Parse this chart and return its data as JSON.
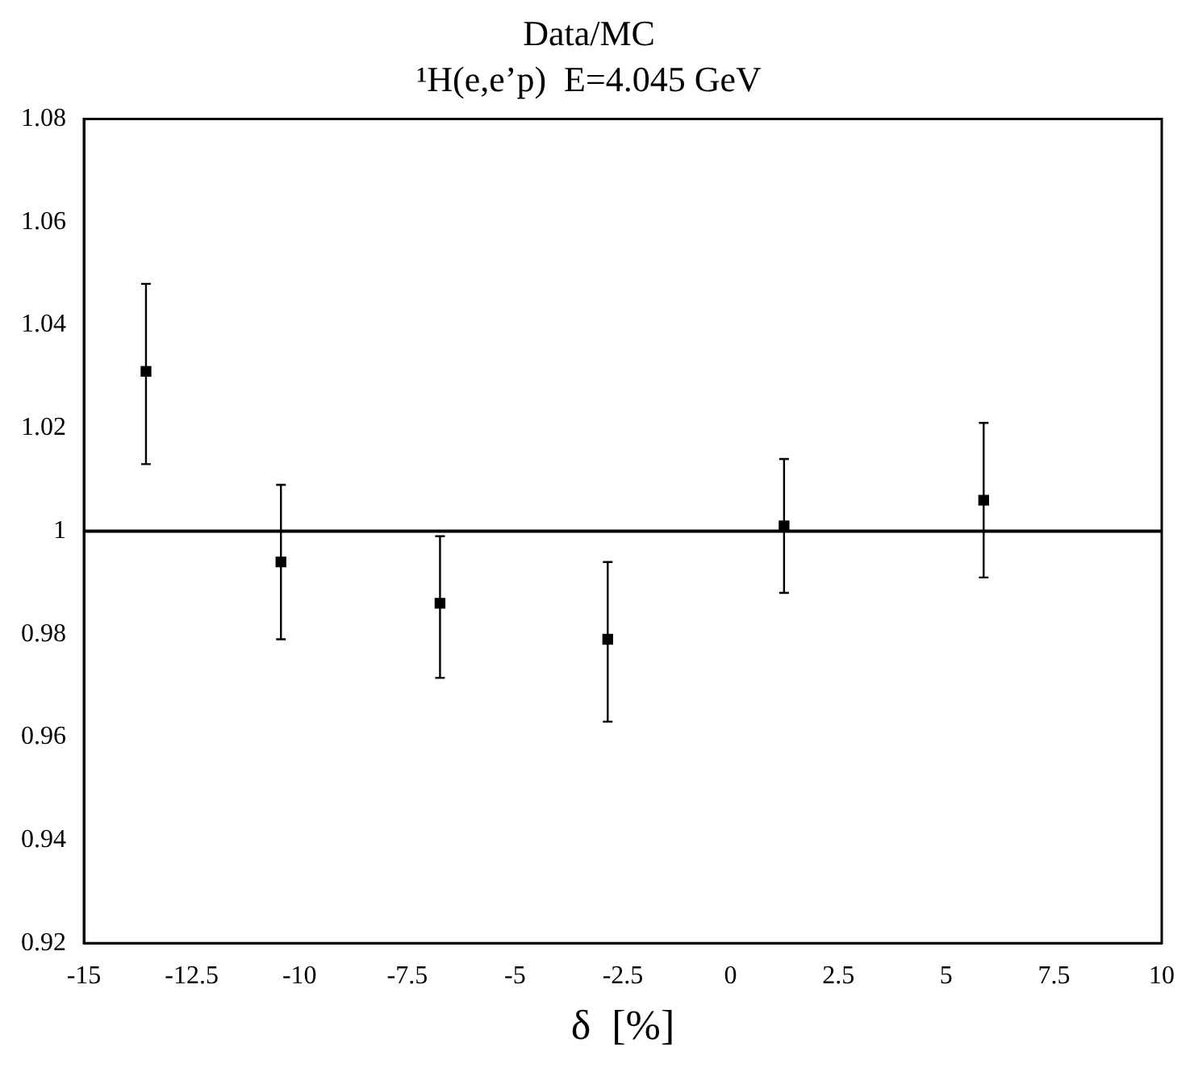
{
  "chart_data": {
    "type": "scatter",
    "title": "Data/MC",
    "subtitle": "¹H(e,e’p)  E=4.045 GeV",
    "xlabel": "δ  [%]",
    "x": [
      -13.56,
      -10.43,
      -6.74,
      -2.85,
      1.24,
      5.87
    ],
    "values": [
      1.031,
      0.994,
      0.986,
      0.979,
      1.001,
      1.006
    ],
    "errors": [
      [
        1.013,
        1.048
      ],
      [
        0.979,
        1.009
      ],
      [
        0.9715,
        0.999
      ],
      [
        0.963,
        0.994
      ],
      [
        0.988,
        1.014
      ],
      [
        0.991,
        1.021
      ]
    ],
    "color": "#000000",
    "marker": "square",
    "grid": false,
    "legend": false,
    "xlim": [
      -15,
      10
    ],
    "xticks": [
      -15,
      -12.5,
      -10,
      -7.5,
      -5,
      -2.5,
      0,
      2.5,
      5,
      7.5,
      10
    ],
    "ylim": [
      0.92,
      1.08
    ],
    "yticks": [
      0.92,
      0.94,
      0.96,
      0.98,
      1,
      1.02,
      1.04,
      1.06,
      1.08
    ],
    "ref_lines": [
      {
        "axis": "y",
        "value": 1,
        "color": "#000000",
        "line_style": "solid"
      }
    ]
  }
}
